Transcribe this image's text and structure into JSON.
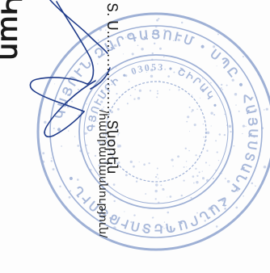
{
  "document": {
    "heading_fragment": "Կաղ",
    "director_abbrev": "Տ. Ս.",
    "dots": " .................. ",
    "director_role": "Տնօրեն",
    "title_label": "/հանրամասնություն/"
  },
  "stamp": {
    "kind": "round-seal",
    "color": "#8ea3cf"
  },
  "signature": {
    "kind": "handwritten",
    "color": "#1f3b8a"
  }
}
